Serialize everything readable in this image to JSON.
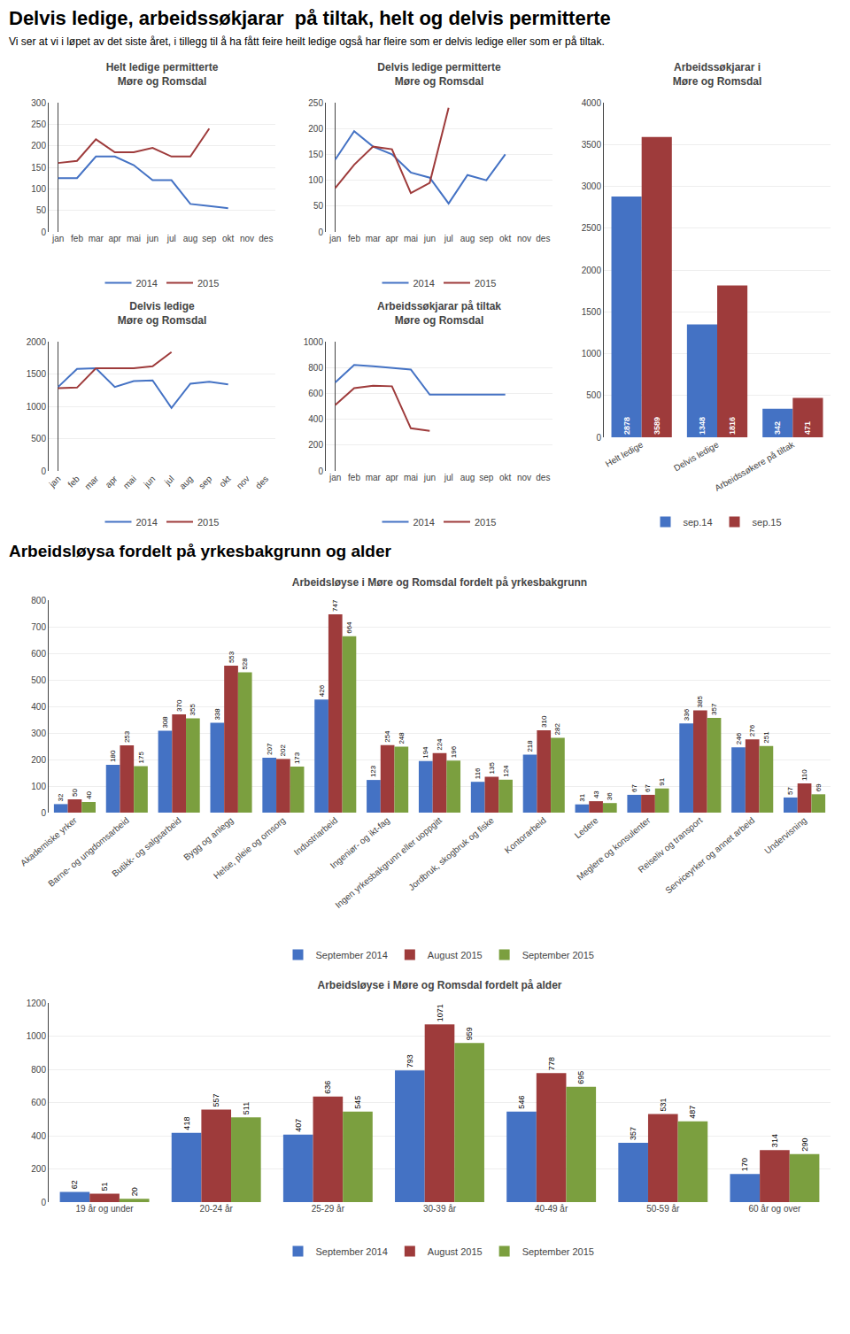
{
  "title": "Delvis ledige, arbeidssøkjarar  på tiltak, helt og delvis permitterte",
  "subtitle": "Vi ser at vi i løpet av det siste året, i tillegg til å ha fått feire heilt ledige også har fleire som er delvis ledige eller som er på tiltak.",
  "annotations": [
    "Arbeidsløysa fordelt på yrkesbakgrunn og alder"
  ],
  "chart_data": [
    {
      "type": "line",
      "title": "Helt ledige permitterte\nMøre og Romsdal",
      "categories": [
        "jan",
        "feb",
        "mar",
        "apr",
        "mai",
        "jun",
        "jul",
        "aug",
        "sep",
        "okt",
        "nov",
        "des"
      ],
      "series": [
        {
          "name": "2014",
          "color": "#4472C4",
          "values": [
            125,
            125,
            175,
            175,
            155,
            120,
            120,
            65,
            60,
            55,
            null,
            null
          ]
        },
        {
          "name": "2015",
          "color": "#9E3B3B",
          "values": [
            160,
            165,
            215,
            185,
            185,
            195,
            175,
            175,
            240,
            null,
            null,
            null
          ]
        }
      ],
      "ylim": [
        0,
        300
      ],
      "yticks": [
        0,
        50,
        100,
        150,
        200,
        250,
        300
      ],
      "grid": true,
      "legend": "bottom"
    },
    {
      "type": "line",
      "title": "Delvis ledige permitterte\nMøre og Romsdal",
      "categories": [
        "jan",
        "feb",
        "mar",
        "apr",
        "mai",
        "jun",
        "jul",
        "aug",
        "sep",
        "okt",
        "nov",
        "des"
      ],
      "series": [
        {
          "name": "2014",
          "color": "#4472C4",
          "values": [
            140,
            195,
            165,
            150,
            115,
            105,
            55,
            110,
            100,
            150,
            null,
            null
          ]
        },
        {
          "name": "2015",
          "color": "#9E3B3B",
          "values": [
            85,
            130,
            165,
            160,
            75,
            95,
            240,
            null,
            null,
            null,
            null,
            null
          ]
        }
      ],
      "ylim": [
        0,
        250
      ],
      "yticks": [
        0,
        50,
        100,
        150,
        200,
        250
      ],
      "grid": true,
      "legend": "bottom"
    },
    {
      "type": "line",
      "title": "Delvis ledige\nMøre og Romsdal",
      "categories": [
        "jan",
        "feb",
        "mar",
        "apr",
        "mai",
        "jun",
        "jul",
        "aug",
        "sep",
        "okt",
        "nov",
        "des"
      ],
      "series": [
        {
          "name": "2014",
          "color": "#4472C4",
          "values": [
            1300,
            1580,
            1590,
            1300,
            1390,
            1400,
            975,
            1350,
            1380,
            1340,
            null,
            null
          ]
        },
        {
          "name": "2015",
          "color": "#9E3B3B",
          "values": [
            1280,
            1290,
            1590,
            1590,
            1590,
            1620,
            1840,
            null,
            null,
            null,
            null,
            null
          ]
        }
      ],
      "ylim": [
        0,
        2000
      ],
      "yticks": [
        0,
        500,
        1000,
        1500,
        2000
      ],
      "grid": true,
      "legend": "bottom"
    },
    {
      "type": "line",
      "title": "Arbeidssøkjarar på tiltak\nMøre og Romsdal",
      "categories": [
        "jan",
        "feb",
        "mar",
        "apr",
        "mai",
        "jun",
        "jul",
        "aug",
        "sep",
        "okt",
        "nov",
        "des"
      ],
      "series": [
        {
          "name": "2014",
          "color": "#4472C4",
          "values": [
            685,
            820,
            810,
            800,
            785,
            590,
            590,
            590,
            590,
            590,
            null,
            null
          ]
        },
        {
          "name": "2015",
          "color": "#9E3B3B",
          "values": [
            510,
            640,
            660,
            655,
            330,
            310,
            null,
            null,
            null,
            null,
            null,
            null
          ]
        }
      ],
      "ylim": [
        0,
        1000
      ],
      "yticks": [
        0,
        200,
        400,
        600,
        800,
        1000
      ],
      "grid": true,
      "legend": "bottom"
    },
    {
      "type": "bar",
      "title": "Arbeidssøkjarar i\nMøre og Romsdal",
      "categories": [
        "Helt ledige",
        "Delvis ledige",
        "Arbeidssøkere på tiltak"
      ],
      "series": [
        {
          "name": "sep.14",
          "color": "#4472C4",
          "values": [
            2878,
            1348,
            342
          ]
        },
        {
          "name": "sep.15",
          "color": "#9E3B3B",
          "values": [
            3589,
            1816,
            471
          ]
        }
      ],
      "ylim": [
        0,
        4000
      ],
      "yticks": [
        0,
        500,
        1000,
        1500,
        2000,
        2500,
        3000,
        3500,
        4000
      ],
      "grid": true,
      "legend": "bottom",
      "data_labels": true
    },
    {
      "type": "bar",
      "title": "Arbeidsløyse i Møre og Romsdal fordelt på yrkesbakgrunn",
      "categories": [
        "Akademiske yrker",
        "Barne- og ungdomsarbeid",
        "Butikk- og salgsarbeid",
        "Bygg og anlegg",
        "Helse, pleie og omsorg",
        "Industriarbeid",
        "Ingeniør- og ikt-fag",
        "Ingen yrkesbakgrunn eller uoppgitt",
        "Jordbruk, skogbruk og fiske",
        "Kontorarbeid",
        "Ledere",
        "Meglere og konsulenter",
        "Reiseliv og transport",
        "Serviceyrker og annet arbeid",
        "Undervisning"
      ],
      "series": [
        {
          "name": "September 2014",
          "color": "#4472C4",
          "values": [
            32,
            180,
            308,
            338,
            207,
            426,
            123,
            194,
            116,
            218,
            31,
            67,
            336,
            246,
            57
          ]
        },
        {
          "name": "August 2015",
          "color": "#9E3B3B",
          "values": [
            50,
            253,
            370,
            553,
            202,
            747,
            254,
            224,
            135,
            310,
            43,
            67,
            385,
            276,
            110
          ]
        },
        {
          "name": "September 2015",
          "color": "#7B9F3F",
          "values": [
            40,
            175,
            355,
            528,
            173,
            664,
            248,
            196,
            124,
            282,
            36,
            91,
            357,
            251,
            69
          ]
        }
      ],
      "ylim": [
        0,
        800
      ],
      "yticks": [
        0,
        100,
        200,
        300,
        400,
        500,
        600,
        700,
        800
      ],
      "grid": true,
      "legend": "bottom",
      "data_labels": true
    },
    {
      "type": "bar",
      "title": "Arbeidsløyse i Møre og Romsdal fordelt på alder",
      "categories": [
        "19 år og under",
        "20-24 år",
        "25-29 år",
        "30-39 år",
        "40-49 år",
        "50-59 år",
        "60 år og over"
      ],
      "series": [
        {
          "name": "September 2014",
          "color": "#4472C4",
          "values": [
            62,
            418,
            407,
            793,
            546,
            357,
            170
          ]
        },
        {
          "name": "August 2015",
          "color": "#9E3B3B",
          "values": [
            51,
            557,
            636,
            1071,
            778,
            531,
            314
          ]
        },
        {
          "name": "September 2015",
          "color": "#7B9F3F",
          "values": [
            20,
            511,
            545,
            959,
            695,
            487,
            290
          ]
        }
      ],
      "ylim": [
        0,
        1200
      ],
      "yticks": [
        0,
        200,
        400,
        600,
        800,
        1000,
        1200
      ],
      "grid": true,
      "legend": "bottom",
      "data_labels": true
    }
  ]
}
